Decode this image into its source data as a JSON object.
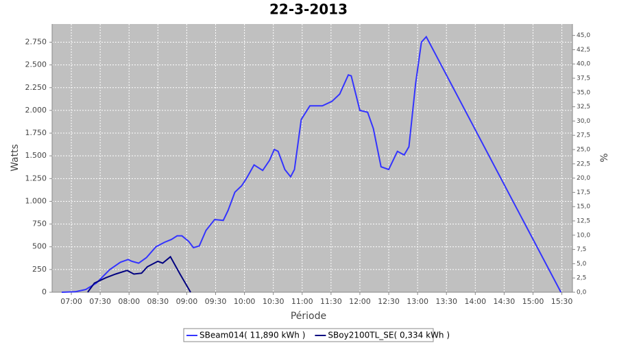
{
  "chart_data": {
    "type": "line",
    "title": "22-3-2013",
    "x_label": "Période",
    "y_label": "Watts",
    "y2_label": "%",
    "xlim": [
      "06:40",
      "15:41"
    ],
    "xticks": [
      "07:00",
      "07:30",
      "08:00",
      "08:30",
      "09:00",
      "09:30",
      "10:00",
      "10:30",
      "11:00",
      "11:30",
      "12:00",
      "12:30",
      "13:00",
      "13:30",
      "14:00",
      "14:30",
      "15:00",
      "15:30"
    ],
    "ylim": [
      0,
      2950
    ],
    "yticks": [
      0,
      250,
      500,
      750,
      {
        "value": 1000,
        "label": "1.000"
      },
      {
        "value": 1250,
        "label": "1.250"
      },
      {
        "value": 1500,
        "label": "1.500"
      },
      {
        "value": 1750,
        "label": "1.750"
      },
      {
        "value": 2000,
        "label": "2.000"
      },
      {
        "value": 2250,
        "label": "2.250"
      },
      {
        "value": 2500,
        "label": "2.500"
      },
      {
        "value": 2750,
        "label": "2.750"
      }
    ],
    "y2lim": [
      0,
      47
    ],
    "y2ticks": [
      {
        "value": 0,
        "label": "0,0"
      },
      {
        "value": 2.5,
        "label": "2,5"
      },
      {
        "value": 5,
        "label": "5,0"
      },
      {
        "value": 7.5,
        "label": "7,5"
      },
      {
        "value": 10,
        "label": "10,0"
      },
      {
        "value": 12.5,
        "label": "12,5"
      },
      {
        "value": 15,
        "label": "15,0"
      },
      {
        "value": 17.5,
        "label": "17,5"
      },
      {
        "value": 20,
        "label": "20,0"
      },
      {
        "value": 22.5,
        "label": "22,5"
      },
      {
        "value": 25,
        "label": "25,0"
      },
      {
        "value": 27.5,
        "label": "27,5"
      },
      {
        "value": 30,
        "label": "30,0"
      },
      {
        "value": 32.5,
        "label": "32,5"
      },
      {
        "value": 35,
        "label": "35,0"
      },
      {
        "value": 37.5,
        "label": "37,5"
      },
      {
        "value": 40,
        "label": "40,0"
      },
      {
        "value": 42.5,
        "label": "42,5"
      },
      {
        "value": 45,
        "label": "45,0"
      }
    ],
    "grid": true,
    "series": [
      {
        "name": "SBeam014( 11,890 kWh )",
        "color": "#3333ff",
        "x": [
          "06:50",
          "07:04",
          "07:15",
          "07:26",
          "07:40",
          "07:51",
          "07:59",
          "08:03",
          "08:10",
          "08:18",
          "08:28",
          "08:37",
          "08:44",
          "08:50",
          "08:55",
          "09:02",
          "09:07",
          "09:13",
          "09:20",
          "09:29",
          "09:38",
          "09:43",
          "09:50",
          "09:57",
          "10:02",
          "10:10",
          "10:19",
          "10:26",
          "10:31",
          "10:35",
          "10:42",
          "10:48",
          "10:52",
          "10:59",
          "11:08",
          "11:21",
          "11:31",
          "11:39",
          "11:48",
          "11:51",
          "12:00",
          "12:08",
          "12:14",
          "12:22",
          "12:30",
          "12:39",
          "12:46",
          "12:51",
          "12:58",
          "13:04",
          "13:09",
          "15:29"
        ],
        "values": [
          0,
          5,
          30,
          100,
          250,
          330,
          360,
          340,
          320,
          380,
          500,
          550,
          580,
          620,
          620,
          560,
          490,
          510,
          680,
          800,
          790,
          900,
          1100,
          1170,
          1250,
          1400,
          1340,
          1450,
          1570,
          1550,
          1350,
          1270,
          1350,
          1900,
          2050,
          2050,
          2100,
          2180,
          2390,
          2380,
          2000,
          1980,
          1800,
          1380,
          1350,
          1550,
          1510,
          1600,
          2300,
          2750,
          2810,
          0
        ]
      },
      {
        "name": "SBoy2100TL_SE( 0,334 kWh )",
        "color": "#000080",
        "x": [
          "07:17",
          "07:24",
          "07:36",
          "07:46",
          "07:58",
          "08:05",
          "08:13",
          "08:19",
          "08:30",
          "08:35",
          "08:43",
          "08:53",
          "09:04"
        ],
        "values": [
          0,
          100,
          160,
          200,
          240,
          200,
          210,
          280,
          340,
          320,
          390,
          200,
          0
        ]
      }
    ]
  }
}
